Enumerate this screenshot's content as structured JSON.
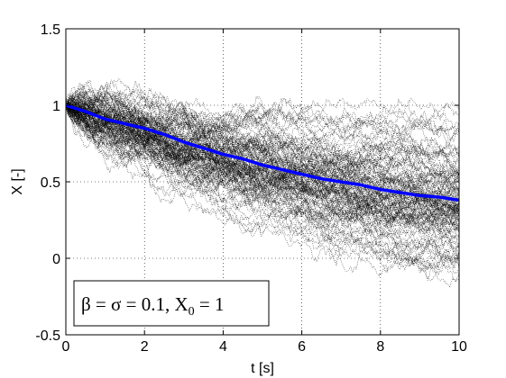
{
  "chart_data": {
    "type": "line",
    "title": "",
    "xlabel": "t [s]",
    "ylabel": "X [-]",
    "xlim": [
      0,
      10
    ],
    "ylim": [
      -0.5,
      1.5
    ],
    "xticks": [
      0,
      2,
      4,
      6,
      8,
      10
    ],
    "yticks": [
      -0.5,
      0,
      0.5,
      1,
      1.5
    ],
    "xtick_labels": [
      "0",
      "2",
      "4",
      "6",
      "8",
      "10"
    ],
    "ytick_labels": [
      "-0.5",
      "0",
      "0.5",
      "1",
      "1.5"
    ],
    "grid": true,
    "annotation": "β = σ = 0.1, X₀ = 1",
    "annotation_parts": {
      "pre": "β = σ = 0.1, X",
      "sub": "0",
      "post": " = 1"
    },
    "series": [
      {
        "style": "sample-paths",
        "color": "#000000",
        "n_paths": 120,
        "x0": 0,
        "y0": 1,
        "drift_rate": 0.1,
        "volatility": 0.1,
        "t_end": 10,
        "steps": 500
      },
      {
        "style": "mean",
        "color": "#0000ff",
        "x": [
          0,
          0.5,
          1,
          1.5,
          2,
          2.5,
          3,
          3.5,
          4,
          4.5,
          5,
          5.5,
          6,
          6.5,
          7,
          7.5,
          8,
          8.5,
          9,
          9.5,
          10
        ],
        "values": [
          1.0,
          0.96,
          0.91,
          0.88,
          0.85,
          0.81,
          0.76,
          0.72,
          0.68,
          0.65,
          0.61,
          0.58,
          0.55,
          0.52,
          0.5,
          0.48,
          0.45,
          0.43,
          0.41,
          0.4,
          0.38
        ]
      }
    ]
  }
}
